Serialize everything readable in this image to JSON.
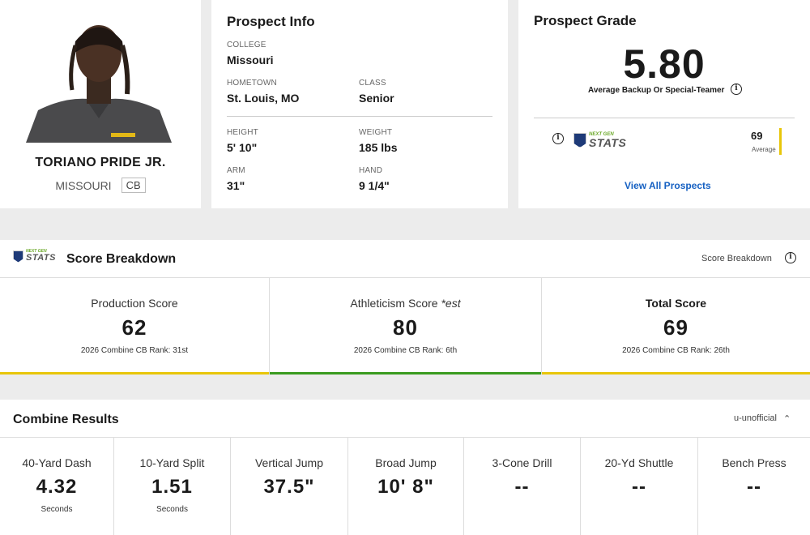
{
  "player": {
    "name": "TORIANO PRIDE JR.",
    "team": "MISSOURI",
    "position": "CB"
  },
  "info": {
    "title": "Prospect Info",
    "fields": {
      "college_label": "COLLEGE",
      "college": "Missouri",
      "hometown_label": "HOMETOWN",
      "hometown": "St. Louis, MO",
      "class_label": "CLASS",
      "class": "Senior",
      "height_label": "HEIGHT",
      "height": "5' 10\"",
      "weight_label": "WEIGHT",
      "weight": "185 lbs",
      "arm_label": "ARM",
      "arm": "31\"",
      "hand_label": "HAND",
      "hand": "9 1/4\""
    }
  },
  "grade": {
    "title": "Prospect Grade",
    "value": "5.80",
    "description": "Average Backup Or Special-Teamer",
    "ngs_top": "NEXT GEN",
    "ngs_bottom": "STATS",
    "ngs_score": "69",
    "ngs_score_label": "Average",
    "view_all": "View All Prospects",
    "colors": {
      "link": "#1560c2",
      "bar": "#e8c60a"
    }
  },
  "score_breakdown": {
    "title": "Score Breakdown",
    "right_label": "Score Breakdown",
    "scores": [
      {
        "label": "Production Score",
        "value": "62",
        "rank": "2026 Combine CB Rank: 31st",
        "bar_color": "#e8c60a"
      },
      {
        "label": "Athleticism Score *est",
        "value": "80",
        "rank": "2026 Combine CB Rank: 6th",
        "bar_color": "#3a9b1f"
      },
      {
        "label": "Total Score",
        "value": "69",
        "rank": "2026 Combine CB Rank: 26th",
        "bar_color": "#e8c60a"
      }
    ]
  },
  "combine": {
    "title": "Combine Results",
    "right_label": "u-unofficial",
    "toggle_icon": "chevron-up-icon",
    "results": [
      {
        "label": "40-Yard Dash",
        "value": "4.32",
        "unit": "Seconds"
      },
      {
        "label": "10-Yard Split",
        "value": "1.51",
        "unit": "Seconds"
      },
      {
        "label": "Vertical Jump",
        "value": "37.5\"",
        "unit": ""
      },
      {
        "label": "Broad Jump",
        "value": "10' 8\"",
        "unit": ""
      },
      {
        "label": "3-Cone Drill",
        "value": "--",
        "unit": ""
      },
      {
        "label": "20-Yd Shuttle",
        "value": "--",
        "unit": ""
      },
      {
        "label": "Bench Press",
        "value": "--",
        "unit": ""
      }
    ]
  }
}
